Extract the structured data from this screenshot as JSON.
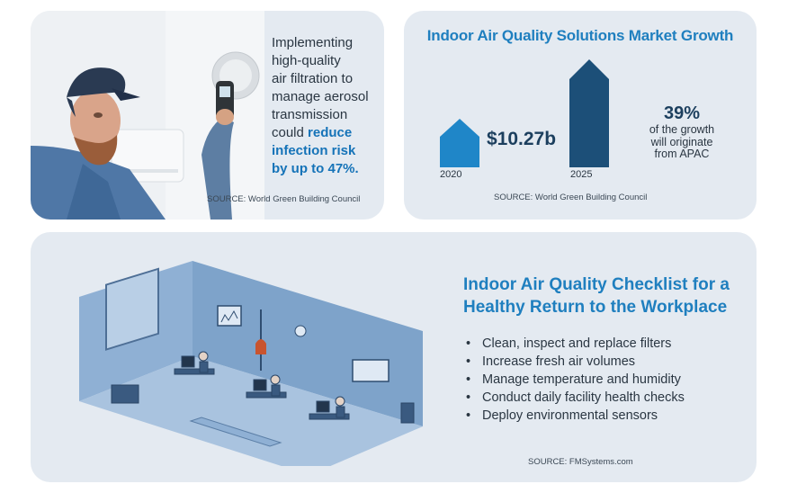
{
  "filtration": {
    "lines": [
      "Implementing",
      "high-quality",
      "air filtration to",
      "manage aerosol",
      "transmission",
      "could"
    ],
    "highlight_lines": [
      "reduce",
      "infection risk",
      "by up to 47%."
    ],
    "source": "SOURCE: World Green Building Council"
  },
  "market": {
    "title": "Indoor Air Quality Solutions Market Growth",
    "year_start": "2020",
    "year_end": "2025",
    "value": "$10.27b",
    "percent": "39%",
    "percent_note_lines": [
      "of the growth",
      "will originate",
      "from APAC"
    ],
    "source": "SOURCE: World Green Building Council"
  },
  "checklist": {
    "title_lines": [
      "Indoor Air Quality Checklist for a",
      "Healthy Return to the Workplace"
    ],
    "items": [
      "Clean, inspect and replace filters",
      "Increase fresh air volumes",
      "Manage temperature and humidity",
      "Conduct daily facility health checks",
      "Deploy environmental sensors"
    ],
    "source": "SOURCE: FMSystems.com"
  },
  "colors": {
    "card_bg": "#e4eaf1",
    "accent_blue": "#1f7fbf",
    "house_2020": "#1f86c8",
    "house_2025": "#1c4f78",
    "room_blue": "#6f96c0"
  }
}
